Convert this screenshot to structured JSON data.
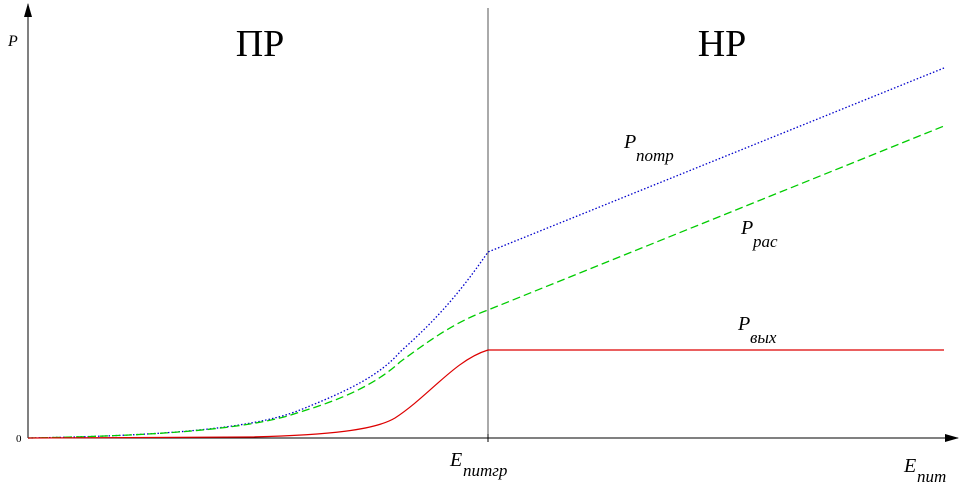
{
  "axes": {
    "y_label": "P",
    "origin": "0"
  },
  "regions": [
    "ПР",
    "НР"
  ],
  "curves": [
    {
      "label": "P",
      "subscript": "потр"
    },
    {
      "label": "P",
      "subscript": "рас"
    },
    {
      "label": "P",
      "subscript": "вых"
    }
  ],
  "x_markers": [
    {
      "label": "E",
      "subscript": "питгр"
    },
    {
      "label": "E",
      "subscript": "пит"
    }
  ]
}
